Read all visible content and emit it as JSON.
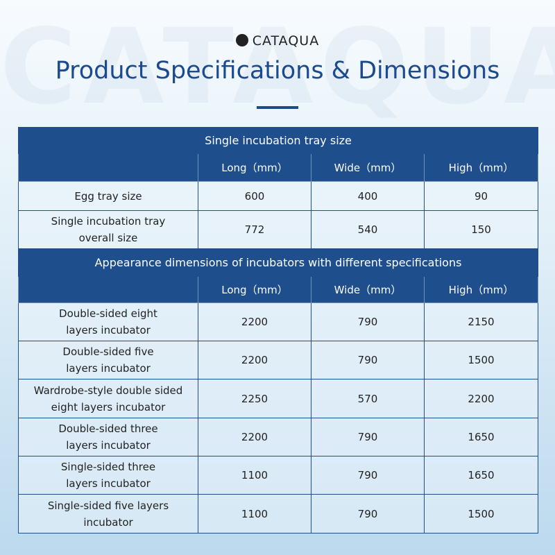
{
  "watermark": "CATAQUA",
  "header": {
    "brand": "CATAQUA",
    "title": "Product Specifications & Dimensions"
  },
  "sections": [
    {
      "title": "Single incubation tray size",
      "columns": [
        "Long（mm）",
        "Wide（mm）",
        "High（mm）"
      ],
      "rows": [
        {
          "label": [
            "Egg tray size"
          ],
          "values": [
            600,
            400,
            90
          ]
        },
        {
          "label": [
            "Single incubation tray",
            "overall size"
          ],
          "values": [
            772,
            540,
            150
          ]
        }
      ]
    },
    {
      "title": "Appearance dimensions of incubators with different specifications",
      "columns": [
        "Long（mm）",
        "Wide（mm）",
        "High（mm）"
      ],
      "rows": [
        {
          "label": [
            "Double-sided eight",
            "layers incubator"
          ],
          "values": [
            2200,
            790,
            2150
          ]
        },
        {
          "label": [
            "Double-sided five",
            "layers incubator"
          ],
          "values": [
            2200,
            790,
            1500
          ]
        },
        {
          "label": [
            "Wardrobe-style double sided",
            "eight layers incubator"
          ],
          "values": [
            2250,
            570,
            2200
          ]
        },
        {
          "label": [
            "Double-sided three",
            "layers incubator"
          ],
          "values": [
            2200,
            790,
            1650
          ]
        },
        {
          "label": [
            "Single-sided three",
            "layers incubator"
          ],
          "values": [
            1100,
            790,
            1650
          ]
        },
        {
          "label": [
            "Single-sided five layers",
            "incubator"
          ],
          "values": [
            1100,
            790,
            1500
          ]
        }
      ]
    }
  ]
}
